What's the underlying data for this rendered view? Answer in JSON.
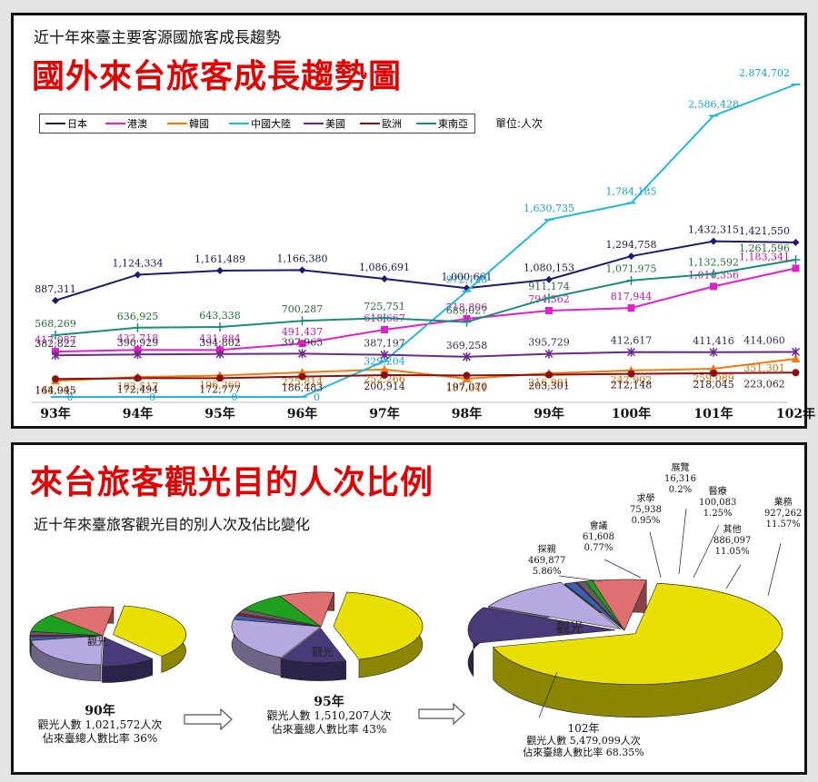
{
  "top": {
    "subtitle": "近十年來臺主要客源國旅客成長趨勢",
    "title": "國外來台旅客成長趨勢圖",
    "unit": "單位:人次"
  },
  "chart_data": [
    {
      "type": "line",
      "x": [
        "93年",
        "94年",
        "95年",
        "96年",
        "97年",
        "98年",
        "99年",
        "100年",
        "101年",
        "102年"
      ],
      "series": [
        {
          "name": "日本",
          "color": "#1a1a6e",
          "labelColor": "#1a1a4a",
          "values": [
            887311,
            1124334,
            1161489,
            1166380,
            1086691,
            1000661,
            1080153,
            1294758,
            1432315,
            1421550
          ],
          "labels": [
            "887,311",
            "1,124,334",
            "1,161,489",
            "1,166,380",
            "1,086,691",
            "1,000,661",
            "1,080,153",
            "1,294,758",
            "1,432,315",
            "1,421,550"
          ]
        },
        {
          "name": "港澳",
          "color": "#e020c8",
          "labelColor": "#c01aa8",
          "values": [
            417087,
            432718,
            431884,
            491437,
            618667,
            718806,
            794362,
            817944,
            1016356,
            1183341
          ],
          "labels": [
            "417,087",
            "432,718",
            "431,884",
            "491,437",
            "618,667",
            "718,806",
            "794,362",
            "817,944",
            "1,016,356",
            "1,183,341"
          ]
        },
        {
          "name": "韓國",
          "color": "#ee7a10",
          "labelColor": "#d06a08",
          "values": [
            148095,
            182517,
            196260,
            225814,
            252266,
            167641,
            216901,
            242902,
            259089,
            351301
          ],
          "labels": [
            "148,095",
            "182,517",
            "196,260",
            "225,814",
            "252,266",
            "167,641",
            "216,901",
            "242,902",
            "259,089",
            "351,301"
          ]
        },
        {
          "name": "中國大陸",
          "color": "#29b4dc",
          "labelColor": "#1aa0cc",
          "values": [
            0,
            0,
            0,
            0,
            329204,
            972123,
            1630735,
            1784185,
            2586428,
            2874702
          ],
          "labels": [
            "0",
            "0",
            "0",
            "0",
            "329,204",
            "972,123",
            "1,630,735",
            "1,784,185",
            "2,586,428",
            "2,874,702"
          ]
        },
        {
          "name": "美國",
          "color": "#6a2a8c",
          "labelColor": "#3a2a4a",
          "values": [
            382822,
            390929,
            394802,
            397965,
            387197,
            369258,
            395729,
            412617,
            411416,
            414060
          ],
          "labels": [
            "382,822",
            "390,929",
            "394,802",
            "397,965",
            "387,197",
            "369,258",
            "395,729",
            "412,617",
            "411,416",
            "414,060"
          ]
        },
        {
          "name": "歐洲",
          "color": "#8a1010",
          "labelColor": "#3a1a1a",
          "values": [
            164945,
            172494,
            172777,
            186483,
            200914,
            197070,
            203301,
            212148,
            218045,
            223062
          ],
          "labels": [
            "164,945",
            "172,494",
            "172,777",
            "186,483",
            "200,914",
            "197,070",
            "203,301",
            "212,148",
            "218,045",
            "223,062"
          ]
        },
        {
          "name": "東南亞",
          "color": "#1a8a7a",
          "labelColor": "#2a6a3a",
          "values": [
            568269,
            636925,
            643338,
            700287,
            725751,
            689027,
            911174,
            1071975,
            1132592,
            1261596
          ],
          "labels": [
            "568,269",
            "636,925",
            "643,338",
            "700,287",
            "725,751",
            "689,027",
            "911,174",
            "1,071,975",
            "1,132,592",
            "1,261,596"
          ]
        }
      ]
    },
    {
      "type": "pie",
      "title": "來台旅客觀光目的人次比例",
      "subtitle": "近十年來臺旅客觀光目的別人次及佔比變化",
      "categories": [
        "觀光",
        "業務",
        "其他",
        "醫療",
        "展覽",
        "求學",
        "會議",
        "探親"
      ],
      "colors": [
        "#e8e000",
        "#4a3a7a",
        "#b8a8e0",
        "#3a60b0",
        "#c01030",
        "#606060",
        "#20a020",
        "#e07070"
      ],
      "charts": [
        {
          "year": "90年",
          "line1": "觀光人數 1,021,572人次",
          "line2": "佔來臺總人數比率 36%"
        },
        {
          "year": "95年",
          "line1": "觀光人數 1,510,207人次",
          "line2": "佔來臺總人數比率 43%"
        },
        {
          "year": "102年",
          "line1": "觀光人數 5,479,099人次",
          "line2": "佔來臺總人數比率 68.35%",
          "slices": [
            {
              "name": "觀光",
              "value": 68.35
            },
            {
              "name": "業務",
              "count": "927,262",
              "value": 11.57,
              "pct": "11.57%"
            },
            {
              "name": "其他",
              "count": "886,097",
              "value": 11.05,
              "pct": "11.05%"
            },
            {
              "name": "醫療",
              "count": "100,083",
              "value": 1.25,
              "pct": "1.25%"
            },
            {
              "name": "展覽",
              "count": "16,316",
              "value": 0.2,
              "pct": "0.2%"
            },
            {
              "name": "求學",
              "count": "75,938",
              "value": 0.95,
              "pct": "0.95%"
            },
            {
              "name": "會議",
              "count": "61,608",
              "value": 0.77,
              "pct": "0.77%"
            },
            {
              "name": "探親",
              "count": "469,877",
              "value": 5.86,
              "pct": "5.86%"
            }
          ]
        }
      ]
    }
  ]
}
